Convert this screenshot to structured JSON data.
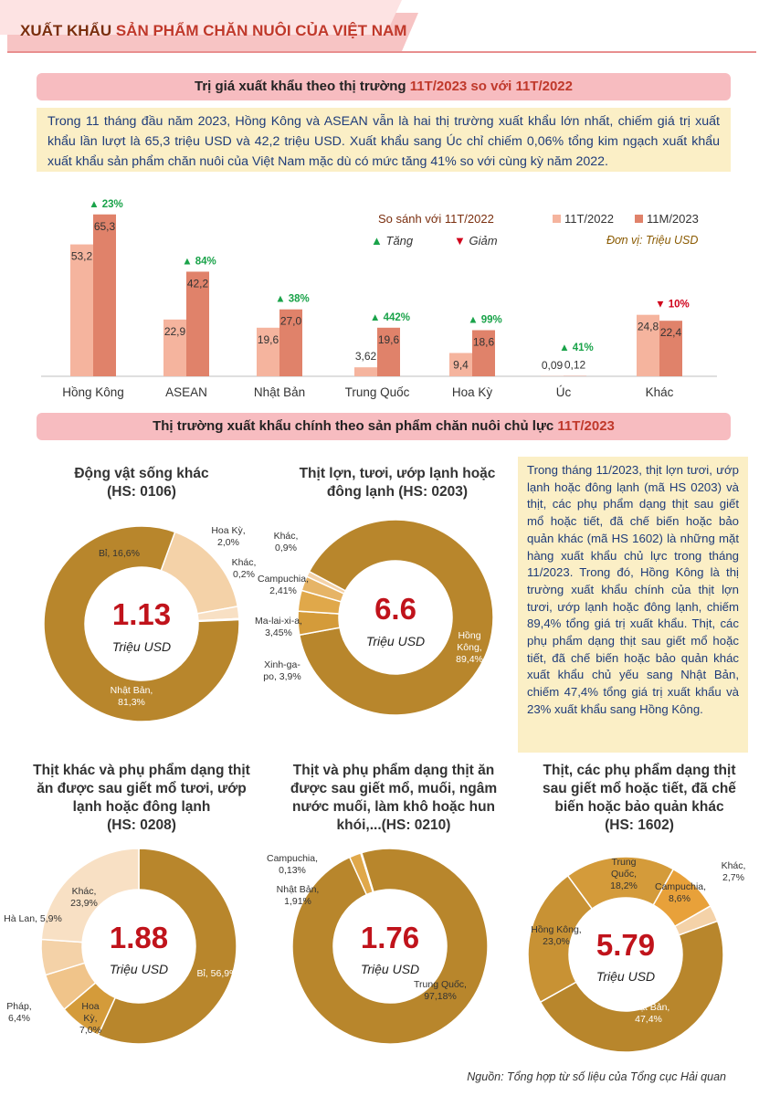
{
  "header": {
    "title_part1": "XUẤT KHẨU",
    "title_part2": "SẢN PHẨM CHĂN NUÔI CỦA VIỆT NAM"
  },
  "section1": {
    "title_prefix": "Trị giá xuất khẩu theo thị trường ",
    "title_highlight": "11T/2023 so với 11T/2022"
  },
  "intro_text": "Trong 11 tháng đầu năm 2023, Hồng Kông và ASEAN vẫn là hai thị trường xuất khẩu lớn nhất, chiếm giá trị xuất khẩu lần lượt là 65,3 triệu USD và 42,2 triệu USD. Xuất khẩu sang Úc chỉ chiếm 0,06% tổng kim ngạch xuất khẩu xuất khẩu sản phẩm chăn nuôi của Việt Nam mặc dù có mức tăng 41% so với cùng kỳ năm 2022.",
  "bar_legend": {
    "compare_label": "So sánh với 11T/2022",
    "up_label": "Tăng",
    "down_label": "Giảm",
    "unit": "Đơn vị: Triệu USD",
    "up_symbol": "▲",
    "down_symbol": "▼"
  },
  "colors": {
    "light": "#f5b49e",
    "dark": "#e0826a",
    "up": "#1aa34a",
    "down": "#d0021b",
    "gold": "#b8862c",
    "gold2": "#d49b3a",
    "gold3": "#e6b466",
    "pale": "#f4d2a8",
    "palest": "#f8e0c4",
    "orange": "#e8a13a"
  },
  "section2": {
    "title_prefix": "Thị trường xuất khẩu chính theo sản phẩm chăn nuôi chủ lực ",
    "title_highlight": "11T/2023"
  },
  "note_text": "Trong tháng 11/2023, thịt lợn tươi, ướp lạnh hoặc đông lạnh (mã HS 0203) và thịt, các phụ phẩm dạng thịt sau giết mổ hoặc tiết, đã chế biến hoặc bảo quản khác (mã HS 1602) là những mặt hàng xuất khẩu chủ lực trong tháng 11/2023. Trong đó, Hồng Kông là thị trường xuất khẩu chính của thịt lợn tươi, ướp lạnh hoặc đông lạnh, chiếm 89,4% tổng giá trị xuất khẩu. Thịt, các phụ phẩm dạng thịt sau giết mổ hoặc tiết, đã chế biến hoặc bảo quản khác xuất khẩu chủ yếu sang Nhật Bản, chiếm 47,4% tổng giá trị xuất khẩu và 23% xuất khẩu sang Hồng Kông.",
  "source": "Nguồn: Tổng hợp từ số liệu của Tổng cục Hải quan",
  "chart_data": [
    {
      "type": "bar",
      "categories": [
        "Hồng Kông",
        "ASEAN",
        "Nhật Bản",
        "Trung Quốc",
        "Hoa Kỳ",
        "Úc",
        "Khác"
      ],
      "series": [
        {
          "name": "11T/2022",
          "values": [
            53.2,
            22.9,
            19.6,
            3.62,
            9.4,
            0.09,
            24.8
          ],
          "labels": [
            "53,2",
            "22,9",
            "19,6",
            "3,62",
            "9,4",
            "0,09",
            "24,8"
          ]
        },
        {
          "name": "11M/2023",
          "values": [
            65.3,
            42.2,
            27.0,
            19.6,
            18.6,
            0.12,
            22.4
          ],
          "labels": [
            "65,3",
            "42,2",
            "27,0",
            "19,6",
            "18,6",
            "0,12",
            "22,4"
          ]
        }
      ],
      "changes": [
        {
          "direction": "up",
          "label": "23%"
        },
        {
          "direction": "up",
          "label": "84%"
        },
        {
          "direction": "up",
          "label": "38%"
        },
        {
          "direction": "up",
          "label": "442%"
        },
        {
          "direction": "up",
          "label": "99%"
        },
        {
          "direction": "up",
          "label": "41%"
        },
        {
          "direction": "down",
          "label": "10%"
        }
      ],
      "ylim": [
        0,
        70
      ],
      "legend": "top-right",
      "grid": false
    },
    {
      "type": "pie",
      "title_lines": [
        "Động vật sống khác",
        "(HS: 0106)"
      ],
      "center_value": "1.13",
      "center_unit": "Triệu USD",
      "slices": [
        {
          "label": "Bỉ, 16,6%",
          "value": 16.6,
          "color": "#f4d2a8"
        },
        {
          "label": "Hoa Kỳ, 2,0%",
          "value": 2.0,
          "color": "#f8e0c4"
        },
        {
          "label": "Khác, 0,2%",
          "value": 0.2,
          "color": "#e6b466"
        },
        {
          "label": "Nhật Bản, 81,3%",
          "value": 81.3,
          "color": "#b8862c"
        }
      ]
    },
    {
      "type": "pie",
      "title_lines": [
        "Thịt lợn, tươi, ướp lạnh hoặc",
        "đông lạnh (HS: 0203)"
      ],
      "center_value": "6.6",
      "center_unit": "Triệu USD",
      "slices": [
        {
          "label": "Hồng Kông, 89,4%",
          "value": 89.4,
          "color": "#b8862c"
        },
        {
          "label": "Xinh-ga-po, 3,9%",
          "value": 3.9,
          "color": "#d49b3a"
        },
        {
          "label": "Ma-lai-xi-a, 3,45%",
          "value": 3.45,
          "color": "#e0a84a"
        },
        {
          "label": "Campuchia, 2,41%",
          "value": 2.41,
          "color": "#e6b466"
        },
        {
          "label": "Khác, 0,9%",
          "value": 0.9,
          "color": "#f4d2a8"
        }
      ]
    },
    {
      "type": "pie",
      "title_lines": [
        "Thịt khác và phụ phẩm dạng thịt",
        "ăn được sau giết mổ tươi, ướp",
        "lạnh hoặc đông lạnh",
        "(HS: 0208)"
      ],
      "center_value": "1.88",
      "center_unit": "Triệu USD",
      "slices": [
        {
          "label": "Bỉ, 56,9%",
          "value": 56.9,
          "color": "#b8862c"
        },
        {
          "label": "Hoa Kỳ, 7,0%",
          "value": 7.0,
          "color": "#d49b3a"
        },
        {
          "label": "Pháp, 6,4%",
          "value": 6.4,
          "color": "#f0c48a"
        },
        {
          "label": "Hà Lan, 5,9%",
          "value": 5.9,
          "color": "#f4d2a8"
        },
        {
          "label": "Khác, 23,9%",
          "value": 23.9,
          "color": "#f8e0c4"
        }
      ]
    },
    {
      "type": "pie",
      "title_lines": [
        "Thịt và phụ phẩm dạng thịt ăn",
        "được sau giết mổ, muối, ngâm",
        "nước muối, làm khô hoặc hun",
        "khói,...(HS: 0210)"
      ],
      "center_value": "1.76",
      "center_unit": "Triệu USD",
      "slices": [
        {
          "label": "Trung Quốc, 97,18%",
          "value": 97.18,
          "color": "#b8862c"
        },
        {
          "label": "Nhật Bản, 1,91%",
          "value": 1.91,
          "color": "#e0a84a"
        },
        {
          "label": "Campuchia, 0,13%",
          "value": 0.13,
          "color": "#f4d2a8"
        }
      ]
    },
    {
      "type": "pie",
      "title_lines": [
        "Thịt, các phụ phẩm dạng thịt",
        "sau giết mổ hoặc tiết, đã chế",
        "biến hoặc bảo quản khác",
        "(HS: 1602)"
      ],
      "center_value": "5.79",
      "center_unit": "Triệu USD",
      "slices": [
        {
          "label": "Nhật Bản, 47,4%",
          "value": 47.4,
          "color": "#b8862c"
        },
        {
          "label": "Hồng Kông, 23,0%",
          "value": 23.0,
          "color": "#c89234"
        },
        {
          "label": "Trung Quốc, 18,2%",
          "value": 18.2,
          "color": "#d49b3a"
        },
        {
          "label": "Campuchia, 8,6%",
          "value": 8.6,
          "color": "#e8a13a"
        },
        {
          "label": "Khác, 2,7%",
          "value": 2.7,
          "color": "#f4d2a8"
        }
      ]
    }
  ]
}
